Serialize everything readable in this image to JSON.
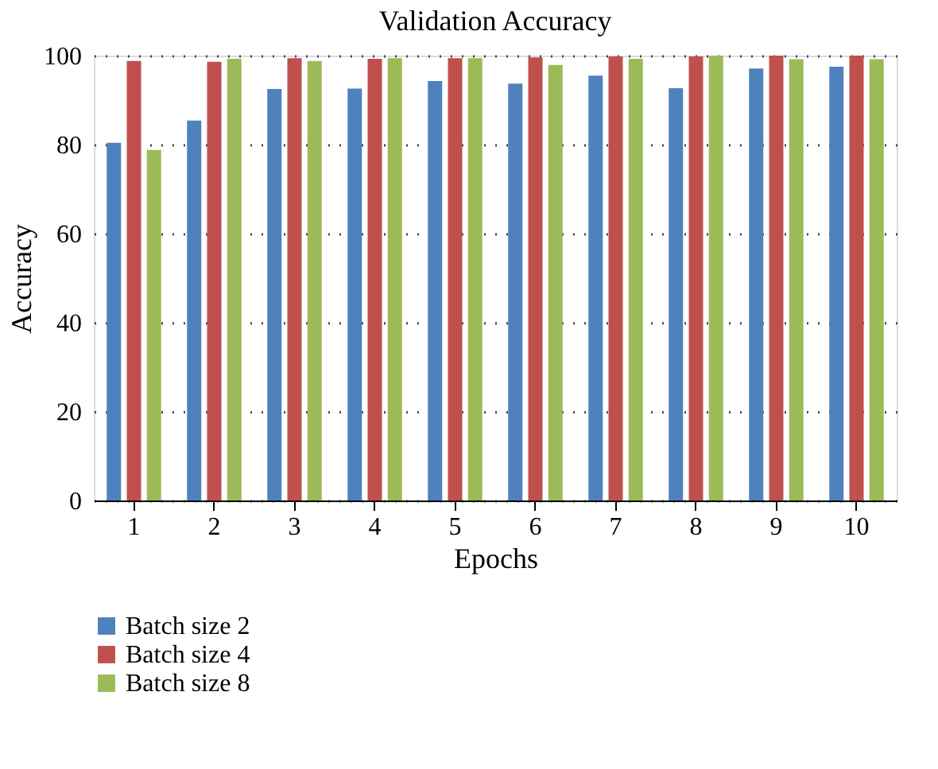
{
  "chart_data": {
    "type": "bar",
    "title": "Validation Accuracy",
    "xlabel": "Epochs",
    "ylabel": "Accuracy",
    "categories": [
      "1",
      "2",
      "3",
      "4",
      "5",
      "6",
      "7",
      "8",
      "9",
      "10"
    ],
    "series": [
      {
        "name": "Batch size 2",
        "color": "#4f81bd",
        "values": [
          80.4,
          85.4,
          92.5,
          92.6,
          94.3,
          93.7,
          95.5,
          92.7,
          97.1,
          97.5
        ]
      },
      {
        "name": "Batch size 4",
        "color": "#c0504d",
        "values": [
          98.8,
          98.6,
          99.4,
          99.3,
          99.4,
          99.6,
          99.8,
          99.8,
          100,
          100
        ]
      },
      {
        "name": "Batch size 8",
        "color": "#9bbb59",
        "values": [
          78.8,
          99.3,
          98.8,
          99.4,
          99.4,
          97.9,
          99.3,
          100,
          99.2,
          99.2
        ]
      }
    ],
    "ylim": [
      0,
      100
    ],
    "yticks": [
      0,
      20,
      40,
      60,
      80,
      100
    ],
    "grid": "y",
    "legend": "bottom left"
  }
}
